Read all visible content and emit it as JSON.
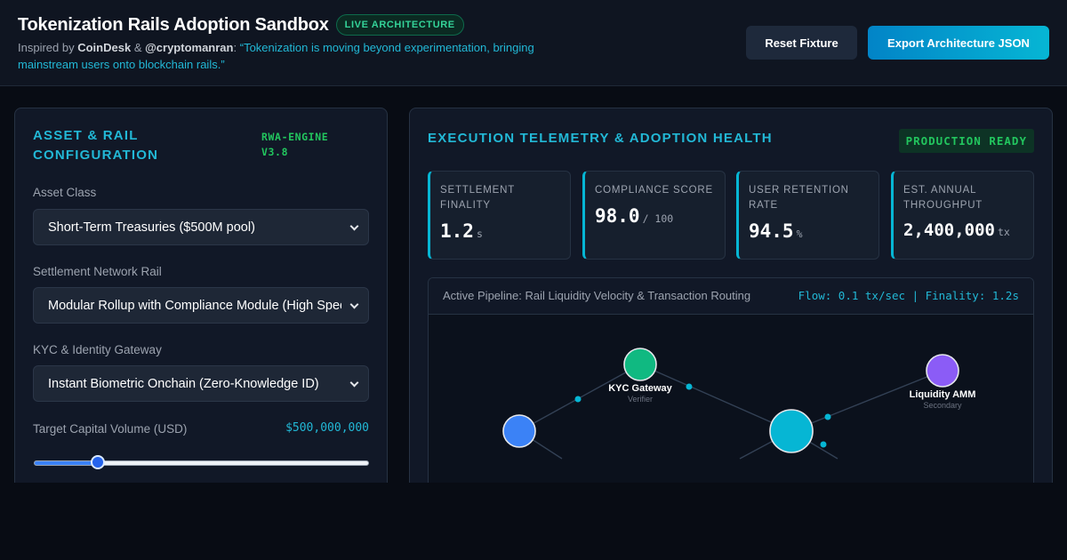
{
  "header": {
    "title": "Tokenization Rails Adoption Sandbox",
    "badge": "LIVE ARCHITECTURE",
    "subtitle": {
      "prefix": "Inspired by",
      "source1": "CoinDesk",
      "connector": "&",
      "source2": "@cryptomanran",
      "colon": ":",
      "quote": "“Tokenization is moving beyond experimentation, bringing mainstream users onto blockchain rails.”"
    },
    "reset_label": "Reset Fixture",
    "export_label": "Export Architecture JSON"
  },
  "config": {
    "heading": "ASSET & RAIL CONFIGURATION",
    "engine_tag": "RWA-ENGINE V3.8",
    "asset_class": {
      "label": "Asset Class",
      "value": "Short-Term Treasuries ($500M pool)"
    },
    "network_rail": {
      "label": "Settlement Network Rail",
      "value": "Modular Rollup with Compliance Module (High Speed)"
    },
    "kyc_gateway": {
      "label": "KYC & Identity Gateway",
      "value": "Instant Biometric Onchain (Zero-Knowledge ID)"
    },
    "volume": {
      "label": "Target Capital Volume (USD)",
      "value": "$500,000,000",
      "slider_fraction": 0.19
    }
  },
  "telemetry": {
    "heading": "EXECUTION TELEMETRY & ADOPTION HEALTH",
    "status": "PRODUCTION READY",
    "metrics": [
      {
        "label": "SETTLEMENT FINALITY",
        "value": "1.2",
        "unit": "s"
      },
      {
        "label": "COMPLIANCE SCORE",
        "value": "98.0",
        "unit": "/ 100"
      },
      {
        "label": "USER RETENTION RATE",
        "value": "94.5",
        "unit": "%"
      },
      {
        "label": "EST. ANNUAL THROUGHPUT",
        "value": "2,400,000",
        "unit": "tx"
      }
    ]
  },
  "pipeline": {
    "title": "Active Pipeline: Rail Liquidity Velocity & Transaction Routing",
    "stats": "Flow: 0.1 tx/sec | Finality: 1.2s",
    "nodes": [
      {
        "id": "source",
        "name": "",
        "role": "",
        "color": "#3b82f6"
      },
      {
        "id": "kyc",
        "name": "KYC Gateway",
        "role": "Verifier",
        "color": "#10b981"
      },
      {
        "id": "rail",
        "name": "",
        "role": "",
        "color": "#06b6d4"
      },
      {
        "id": "amm",
        "name": "Liquidity AMM",
        "role": "Secondary",
        "color": "#8b5cf6"
      }
    ]
  }
}
